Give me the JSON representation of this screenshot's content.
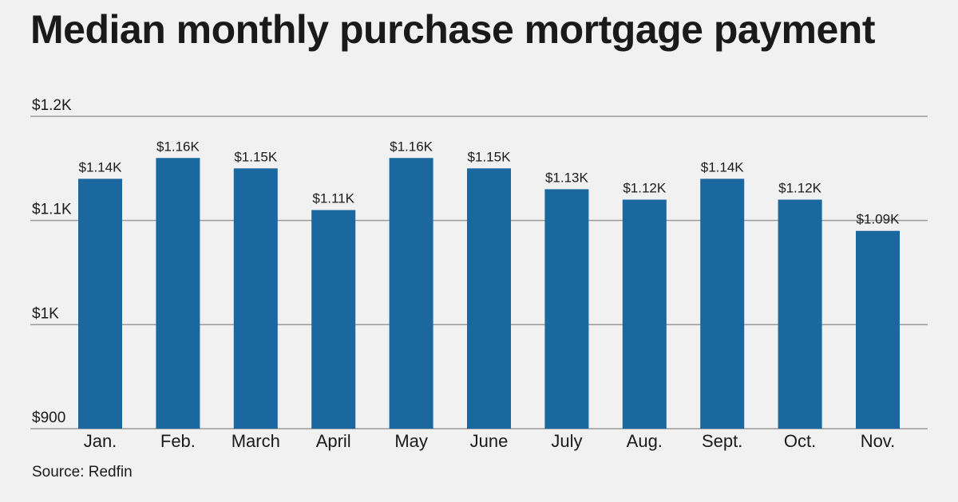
{
  "title": "Median monthly purchase mortgage payment",
  "source": "Source: Redfin",
  "colors": {
    "bar": "#1b67a0",
    "grid": "#9a9a9a",
    "background": "#f0f1f0",
    "text": "#1a1a1a"
  },
  "chart_data": {
    "type": "bar",
    "title": "Median monthly purchase mortgage payment",
    "xlabel": "",
    "ylabel": "",
    "categories": [
      "Jan.",
      "Feb.",
      "March",
      "April",
      "May",
      "June",
      "July",
      "Aug.",
      "Sept.",
      "Oct.",
      "Nov."
    ],
    "values": [
      1140,
      1160,
      1150,
      1110,
      1160,
      1150,
      1130,
      1120,
      1140,
      1120,
      1090
    ],
    "data_labels": [
      "$1.14K",
      "$1.16K",
      "$1.15K",
      "$1.11K",
      "$1.16K",
      "$1.15K",
      "$1.13K",
      "$1.12K",
      "$1.14K",
      "$1.12K",
      "$1.09K"
    ],
    "ylim": [
      900,
      1200
    ],
    "yticks": [
      900,
      1000,
      1100,
      1200
    ],
    "ytick_labels": [
      "$900",
      "$1K",
      "$1.1K",
      "$1.2K"
    ],
    "grid": true,
    "legend": "none"
  }
}
